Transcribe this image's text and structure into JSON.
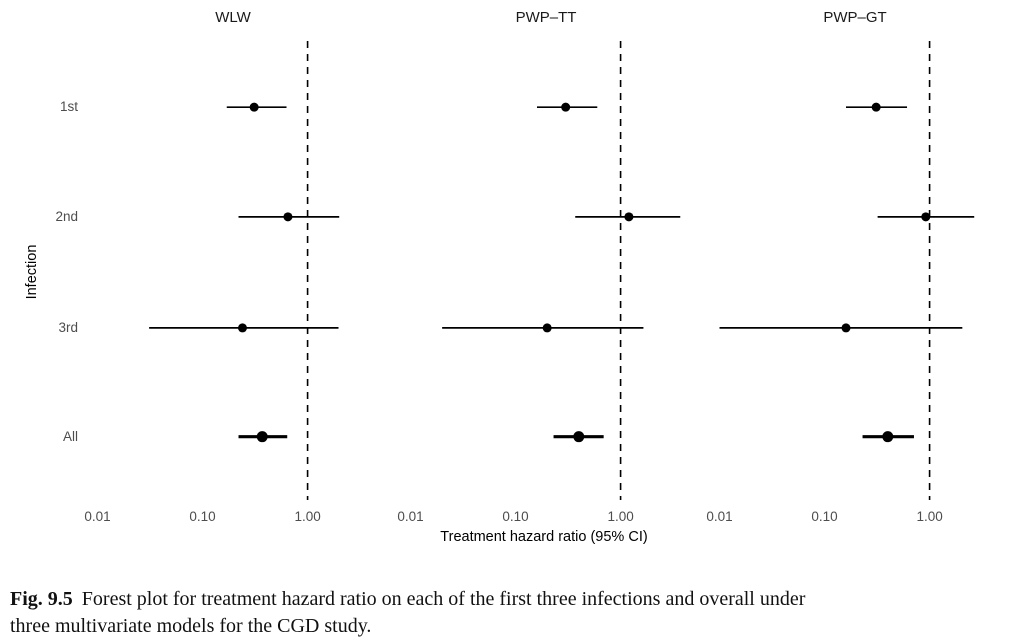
{
  "colors": {
    "data_ink": "#000000",
    "axis_text": "#4d4d4d",
    "panel_title_text": "#1a1a1a",
    "caption_text": "#111111",
    "background": "#ffffff"
  },
  "chart_data": {
    "type": "forest",
    "log_x": true,
    "xlim": [
      0.0076,
      5.0
    ],
    "reference_line": 1.0,
    "x_ticks": [
      0.01,
      0.1,
      1.0
    ],
    "x_tick_labels": [
      "0.01",
      "0.10",
      "1.00"
    ],
    "xlabel": "Treatment hazard ratio (95% CI)",
    "ylabel": "Infection",
    "categories": [
      "1st",
      "2nd",
      "3rd",
      "All"
    ],
    "legend": "none",
    "grid": "off",
    "panels": [
      {
        "title": "WLW",
        "rows": [
          {
            "label": "1st",
            "hr": 0.31,
            "lo": 0.17,
            "hi": 0.63,
            "bold": false
          },
          {
            "label": "2nd",
            "hr": 0.65,
            "lo": 0.22,
            "hi": 2.0,
            "bold": false
          },
          {
            "label": "3rd",
            "hr": 0.24,
            "lo": 0.031,
            "hi": 1.97,
            "bold": false
          },
          {
            "label": "All",
            "hr": 0.37,
            "lo": 0.22,
            "hi": 0.64,
            "bold": true
          }
        ]
      },
      {
        "title": "PWP–TT",
        "rows": [
          {
            "label": "1st",
            "hr": 0.3,
            "lo": 0.16,
            "hi": 0.6,
            "bold": false
          },
          {
            "label": "2nd",
            "hr": 1.2,
            "lo": 0.37,
            "hi": 3.7,
            "bold": false
          },
          {
            "label": "3rd",
            "hr": 0.2,
            "lo": 0.02,
            "hi": 1.65,
            "bold": false
          },
          {
            "label": "All",
            "hr": 0.4,
            "lo": 0.23,
            "hi": 0.69,
            "bold": true
          }
        ]
      },
      {
        "title": "PWP–GT",
        "rows": [
          {
            "label": "1st",
            "hr": 0.31,
            "lo": 0.16,
            "hi": 0.61,
            "bold": false
          },
          {
            "label": "2nd",
            "hr": 0.92,
            "lo": 0.32,
            "hi": 2.66,
            "bold": false
          },
          {
            "label": "3rd",
            "hr": 0.16,
            "lo": 0.01,
            "hi": 2.05,
            "bold": false
          },
          {
            "label": "All",
            "hr": 0.4,
            "lo": 0.23,
            "hi": 0.71,
            "bold": true
          }
        ]
      }
    ]
  },
  "caption": {
    "label": "Fig. 9.5",
    "line1": "Forest plot for treatment hazard ratio on each of the first three infections and overall under",
    "line2": "three multivariate models for the CGD study."
  }
}
